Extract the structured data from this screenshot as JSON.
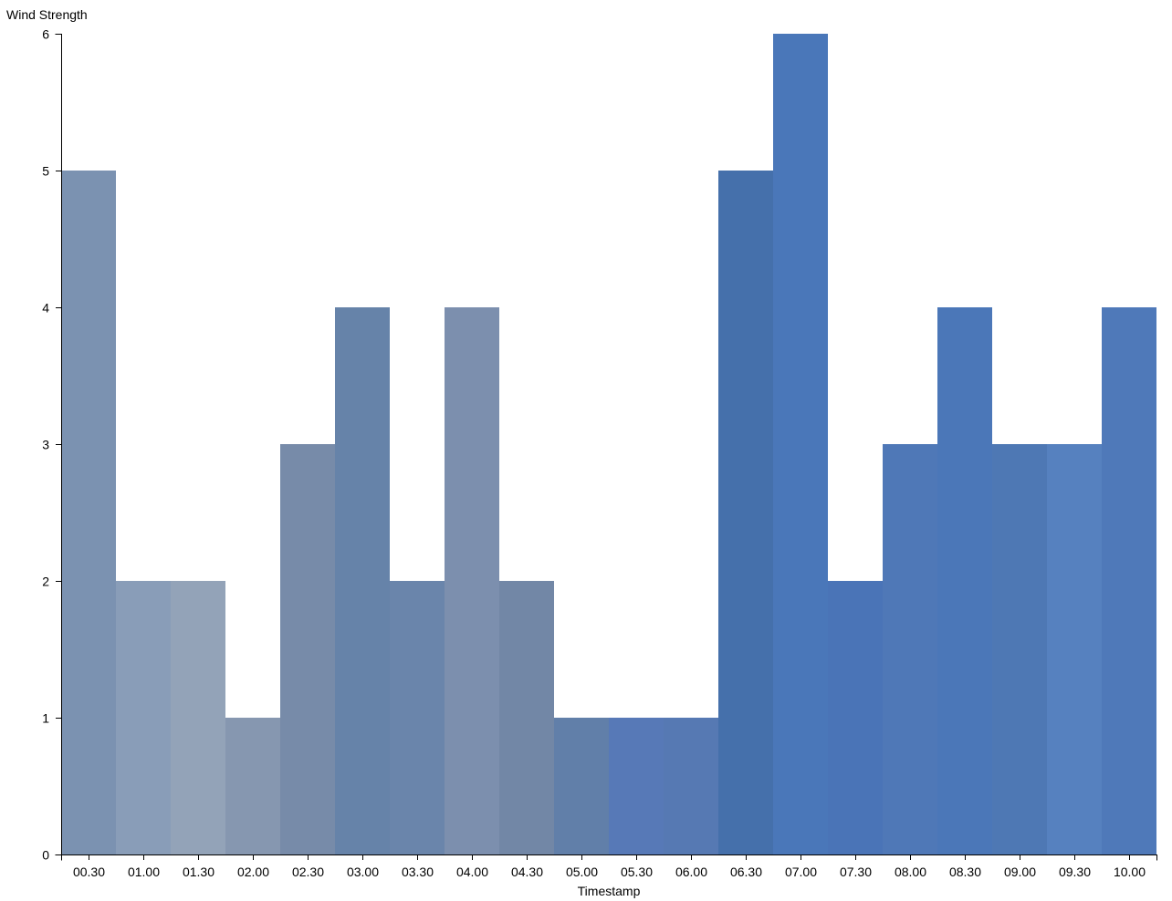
{
  "chart_data": {
    "type": "bar",
    "xlabel": "Timestamp",
    "ylabel": "Wind Strength",
    "categories": [
      "00.30",
      "01.00",
      "01.30",
      "02.00",
      "02.30",
      "03.00",
      "03.30",
      "04.00",
      "04.30",
      "05.00",
      "05.30",
      "06.00",
      "06.30",
      "07.00",
      "07.30",
      "08.00",
      "08.30",
      "09.00",
      "09.30",
      "10.00"
    ],
    "values": [
      5,
      2,
      2,
      1,
      3,
      4,
      2,
      4,
      2,
      1,
      1,
      1,
      5,
      6,
      2,
      3,
      4,
      3,
      3,
      4
    ],
    "ylim": [
      0,
      6
    ],
    "yticks": [
      0,
      1,
      2,
      3,
      4,
      5,
      6
    ],
    "grid": false,
    "legend": "none",
    "bar_colors": [
      "#7b92b1",
      "#899db8",
      "#93a3b8",
      "#8697b0",
      "#778ba9",
      "#6683a9",
      "#6a85ab",
      "#7c8fae",
      "#7287a6",
      "#617fa9",
      "#5779b7",
      "#5679b3",
      "#4570ab",
      "#4a77b9",
      "#4a74b7",
      "#4f78b7",
      "#4b77b8",
      "#4e78b4",
      "#5681bf",
      "#4f79b9"
    ]
  }
}
